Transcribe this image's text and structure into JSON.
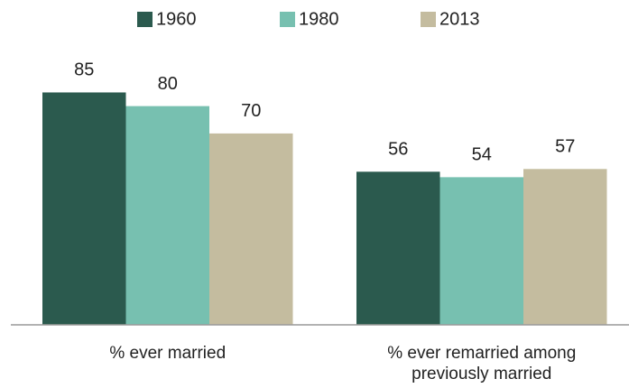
{
  "chart_data": {
    "type": "bar",
    "categories": [
      "% ever married",
      "% ever remarried among previously married"
    ],
    "series": [
      {
        "name": "1960",
        "color": "#2b5a4e",
        "values": [
          85,
          56
        ]
      },
      {
        "name": "1980",
        "color": "#77c0b0",
        "values": [
          80,
          54
        ]
      },
      {
        "name": "2013",
        "color": "#c4bc9f",
        "values": [
          70,
          57
        ]
      }
    ],
    "legend": "top"
  }
}
